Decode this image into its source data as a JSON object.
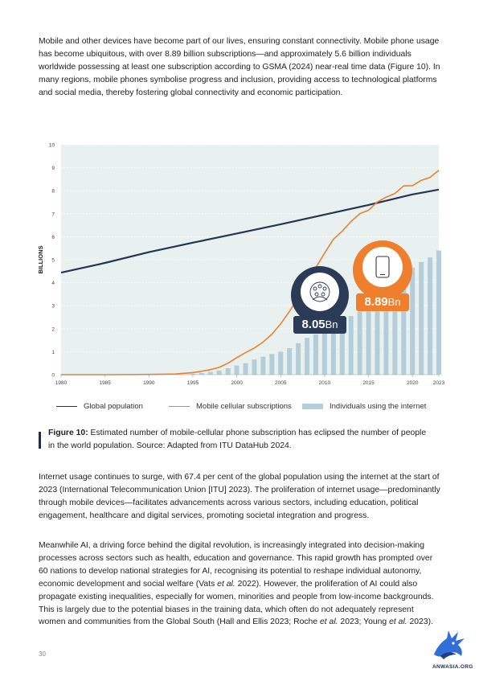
{
  "text": {
    "p1": "Mobile and other devices have become part of our lives, ensuring constant connectivity. Mobile phone usage has become ubiquitous, with over 8.89 billion subscriptions—and approximately 5.6 billion individuals worldwide possessing at least one subscription according to GSMA (2024) near-real time data (Figure 10). In many regions, mobile phones symbolise progress and inclusion, providing access to technological platforms and social media, thereby fostering global connectivity and economic participation.",
    "p2": "Internet usage continues to surge, with 67.4 per cent of the global population using the internet at the start of 2023 (International Telecommunication Union [ITU] 2023). The proliferation of internet usage—predominantly through mobile devices—facilitates advancements across various sectors, including education, political engagement, healthcare and digital services, promoting societal integration and progress.",
    "p3_a": "Meanwhile AI, a driving force behind the digital revolution, is increasingly integrated into decision-making processes across sectors such as health, education and governance. This rapid growth has prompted over 60 nations to develop national strategies for AI, recognising its potential to reshape individual autonomy, economic development and social welfare (Vats ",
    "p3_b": "et al.",
    "p3_c": " 2022). However, the proliferation of AI could also propagate existing inequalities, especially for women, minorities and people from low-income backgrounds. This is largely due to the potential biases in the training data, which often do not adequately represent women and communities from the Global South (Hall and Ellis 2023; Roche ",
    "p3_d": "et al.",
    "p3_e": " 2023; Young ",
    "p3_f": "et al.",
    "p3_g": " 2023).",
    "caption_label": "Figure 10:",
    "caption_text": " Estimated number of mobile-cellular phone subscription has eclipsed the number of people in the world population. Source: Adapted from ITU DataHub 2024.",
    "page_number": "30",
    "logo_text": "ANWASIA.ORG"
  },
  "chart_data": {
    "type": "line",
    "ylabel": "BILLIONS",
    "xlabel": "",
    "xlim": [
      1980,
      2023
    ],
    "ylim": [
      0,
      10
    ],
    "yticks": [
      0,
      1,
      2,
      3,
      4,
      5,
      6,
      7,
      8,
      9,
      10
    ],
    "xticks": [
      1980,
      1985,
      1990,
      1995,
      2000,
      2005,
      2010,
      2015,
      2020,
      2023
    ],
    "colors": {
      "population": "#253553",
      "mobile": "#ef7f2d",
      "internet": "#b3ced8",
      "plot_bg": "#e8f1f0",
      "badge_dark": "#2a3a57",
      "badge_orange": "#ef7f2d"
    },
    "series": [
      {
        "name": "Global population",
        "type": "line",
        "x": [
          1980,
          1985,
          1990,
          1995,
          2000,
          2005,
          2010,
          2015,
          2020,
          2023
        ],
        "values": [
          4.44,
          4.86,
          5.33,
          5.74,
          6.14,
          6.54,
          6.96,
          7.38,
          7.84,
          8.05
        ]
      },
      {
        "name": "Mobile cellular subscriptions",
        "type": "line",
        "x": [
          1980,
          1985,
          1990,
          1993,
          1995,
          1996,
          1997,
          1998,
          1999,
          2000,
          2001,
          2002,
          2003,
          2004,
          2005,
          2006,
          2007,
          2008,
          2009,
          2010,
          2011,
          2012,
          2013,
          2014,
          2015,
          2016,
          2017,
          2018,
          2019,
          2020,
          2021,
          2022,
          2023
        ],
        "values": [
          0.0,
          0.0,
          0.01,
          0.03,
          0.09,
          0.15,
          0.22,
          0.32,
          0.5,
          0.74,
          0.96,
          1.16,
          1.42,
          1.76,
          2.21,
          2.75,
          3.37,
          4.04,
          4.66,
          5.29,
          5.89,
          6.24,
          6.66,
          7.0,
          7.15,
          7.51,
          7.72,
          7.88,
          8.21,
          8.22,
          8.45,
          8.58,
          8.89
        ]
      },
      {
        "name": "Individuals using the internet",
        "type": "bar",
        "x": [
          1995,
          1996,
          1997,
          1998,
          1999,
          2000,
          2001,
          2002,
          2003,
          2004,
          2005,
          2006,
          2007,
          2008,
          2009,
          2010,
          2011,
          2012,
          2013,
          2014,
          2015,
          2016,
          2017,
          2018,
          2019,
          2020,
          2021,
          2022,
          2023
        ],
        "values": [
          0.04,
          0.07,
          0.12,
          0.18,
          0.28,
          0.4,
          0.5,
          0.66,
          0.78,
          0.9,
          1.0,
          1.15,
          1.37,
          1.6,
          1.75,
          2.0,
          2.2,
          2.4,
          2.55,
          2.75,
          2.95,
          3.2,
          3.4,
          3.75,
          4.1,
          4.65,
          4.9,
          5.1,
          5.4
        ]
      }
    ],
    "annotations": [
      {
        "value_text": "8.05",
        "unit_text": "Bn",
        "series": "Global population",
        "icon": "people-network-icon"
      },
      {
        "value_text": "8.89",
        "unit_text": "Bn",
        "series": "Mobile cellular subscriptions",
        "icon": "smartphone-icon"
      }
    ],
    "legend_position": "bottom"
  }
}
